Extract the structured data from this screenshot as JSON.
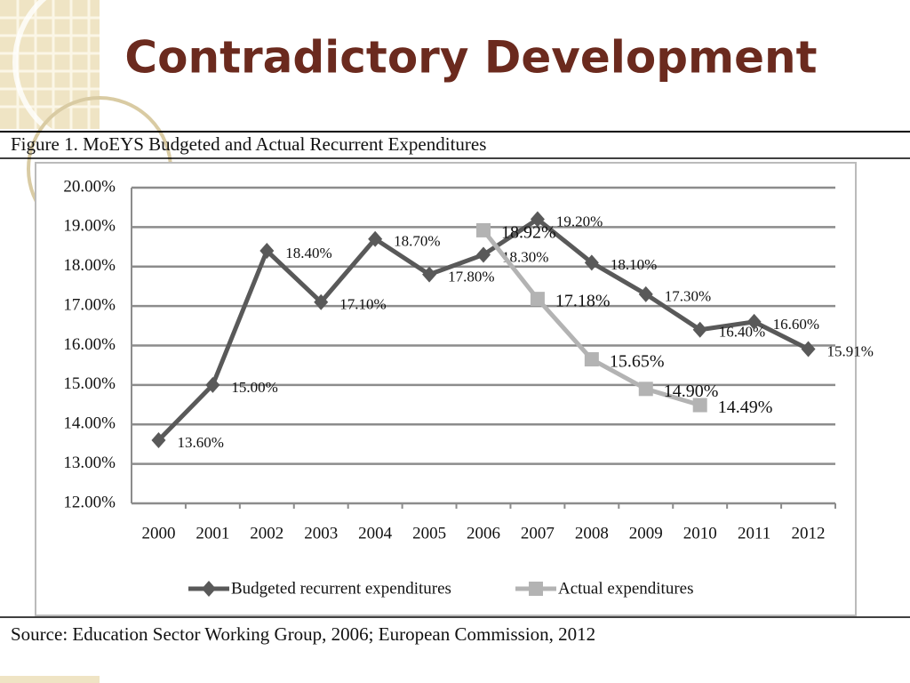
{
  "slide_title": "Contradictory Development",
  "source": "Source: Education Sector Working Group, 2006; European Commission, 2012",
  "chart_data": {
    "type": "line",
    "title": "Figure 1. MoEYS Budgeted and Actual Recurrent Expenditures",
    "categories": [
      "2000",
      "2001",
      "2002",
      "2003",
      "2004",
      "2005",
      "2006",
      "2007",
      "2008",
      "2009",
      "2010",
      "2011",
      "2012"
    ],
    "series": [
      {
        "name": "Budgeted recurrent expenditures",
        "color": "#595959",
        "marker": "diamond",
        "values": [
          13.6,
          15.0,
          18.4,
          17.1,
          18.7,
          17.8,
          18.3,
          19.2,
          18.1,
          17.3,
          16.4,
          16.6,
          15.91
        ],
        "value_labels": [
          "13.60%",
          "15.00%",
          "18.40%",
          "17.10%",
          "18.70%",
          "17.80%",
          "18.30%",
          "19.20%",
          "18.10%",
          "17.30%",
          "16.40%",
          "16.60%",
          "15.91%"
        ]
      },
      {
        "name": "Actual expenditures",
        "color": "#b3b3b3",
        "marker": "square",
        "values": [
          null,
          null,
          null,
          null,
          null,
          null,
          18.92,
          17.18,
          15.65,
          14.9,
          14.49,
          null,
          null
        ],
        "value_labels": [
          null,
          null,
          null,
          null,
          null,
          null,
          "18.92%",
          "17.18%",
          "15.65%",
          "14.90%",
          "14.49%",
          null,
          null
        ]
      }
    ],
    "ylim": [
      12,
      20
    ],
    "yticks": [
      {
        "value": 12,
        "label": "12.00%"
      },
      {
        "value": 13,
        "label": "13.00%"
      },
      {
        "value": 14,
        "label": "14.00%"
      },
      {
        "value": 15,
        "label": "15.00%"
      },
      {
        "value": 16,
        "label": "16.00%"
      },
      {
        "value": 17,
        "label": "17.00%"
      },
      {
        "value": 18,
        "label": "18.00%"
      },
      {
        "value": 19,
        "label": "19.00%"
      },
      {
        "value": 20,
        "label": "20.00%"
      }
    ],
    "grid": true,
    "legend": "bottom"
  }
}
